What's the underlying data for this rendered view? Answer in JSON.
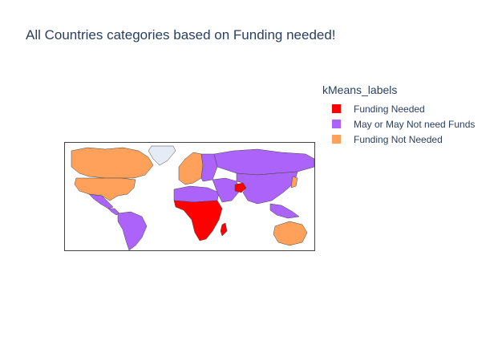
{
  "title": "All Countries categories based on Funding needed!",
  "legend": {
    "title": "kMeans_labels",
    "items": [
      {
        "label": "Funding Needed",
        "color": "#ff0000"
      },
      {
        "label": "May or May Not need Funds",
        "color": "#ab63fa"
      },
      {
        "label": "Funding Not Needed",
        "color": "#ffa15a"
      }
    ]
  },
  "colors": {
    "no_data": "#e5ecf6",
    "border": "#444444"
  },
  "regions": [
    {
      "name": "Greenland",
      "category": "none"
    },
    {
      "name": "Canada",
      "category": "Funding Not Needed"
    },
    {
      "name": "United States",
      "category": "Funding Not Needed"
    },
    {
      "name": "Mexico",
      "category": "May or May Not need Funds"
    },
    {
      "name": "Central America",
      "category": "May or May Not need Funds"
    },
    {
      "name": "South America",
      "category": "May or May Not need Funds"
    },
    {
      "name": "Western Europe",
      "category": "Funding Not Needed"
    },
    {
      "name": "Eastern Europe",
      "category": "May or May Not need Funds"
    },
    {
      "name": "Russia",
      "category": "May or May Not need Funds"
    },
    {
      "name": "North Africa",
      "category": "May or May Not need Funds"
    },
    {
      "name": "Sub-Saharan Africa",
      "category": "Funding Needed"
    },
    {
      "name": "Middle East",
      "category": "May or May Not need Funds"
    },
    {
      "name": "Afghanistan",
      "category": "Funding Needed"
    },
    {
      "name": "Asia",
      "category": "May or May Not need Funds"
    },
    {
      "name": "Japan",
      "category": "Funding Not Needed"
    },
    {
      "name": "Southeast Asia",
      "category": "May or May Not need Funds"
    },
    {
      "name": "Australia",
      "category": "Funding Not Needed"
    },
    {
      "name": "Madagascar",
      "category": "Funding Needed"
    }
  ]
}
